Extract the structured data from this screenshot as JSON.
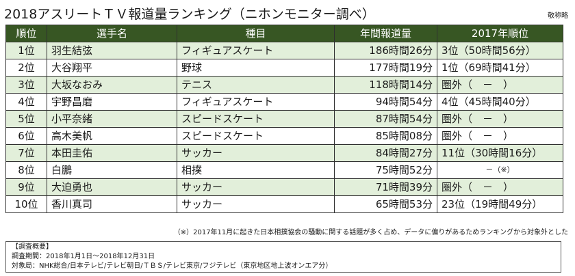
{
  "title": "2018アスリートＴＶ報道量ランキング（ニホンモニター調べ）",
  "honorific_note": "敬称略",
  "table": {
    "headers": {
      "rank": "順位",
      "name": "選手名",
      "sport": "種目",
      "time": "年間報道量",
      "prev": "2017年順位"
    },
    "rows": [
      {
        "rank": "1位",
        "name": "羽生結弦",
        "sport": "フィギュアスケート",
        "time": "186時間26分",
        "prev": "3位（50時間56分）"
      },
      {
        "rank": "2位",
        "name": "大谷翔平",
        "sport": "野球",
        "time": "177時間19分",
        "prev": "1位（69時間41分）"
      },
      {
        "rank": "3位",
        "name": "大坂なおみ",
        "sport": "テニス",
        "time": "118時間14分",
        "prev": "圏外（　－　）"
      },
      {
        "rank": "4位",
        "name": "宇野昌磨",
        "sport": "フィギュアスケート",
        "time": "94時間54分",
        "prev": "4位（45時間40分）"
      },
      {
        "rank": "5位",
        "name": "小平奈緒",
        "sport": "スピードスケート",
        "time": "87時間54分",
        "prev": "圏外（　－　）"
      },
      {
        "rank": "6位",
        "name": "高木美帆",
        "sport": "スピードスケート",
        "time": "85時間08分",
        "prev": "圏外（　－　）"
      },
      {
        "rank": "7位",
        "name": "本田圭佑",
        "sport": "サッカー",
        "time": "84時間27分",
        "prev": "11位（30時間16分）"
      },
      {
        "rank": "8位",
        "name": "白鵬",
        "sport": "相撲",
        "time": "75時間52分",
        "prev": "－（※）"
      },
      {
        "rank": "9位",
        "name": "大迫勇也",
        "sport": "サッカー",
        "time": "71時間39分",
        "prev": "圏外（　－　）"
      },
      {
        "rank": "10位",
        "name": "香川真司",
        "sport": "サッカー",
        "time": "65時間53分",
        "prev": "23位（19時間49分）"
      }
    ]
  },
  "footnote": "（※）2017年11月に起きた日本相撲協会の騒動に関する話題が多く占め、データに偏りがあるためランキングから対象外とした",
  "summary": {
    "heading": "【調査概要】",
    "period": "調査期間：2018年1月1日～2018年12月31日",
    "stations": "対象局：NHK総合/日本テレビ/テレビ朝日/ＴＢＳ/テレビ東京/フジテレビ（東京地区地上波オンエア分）"
  }
}
